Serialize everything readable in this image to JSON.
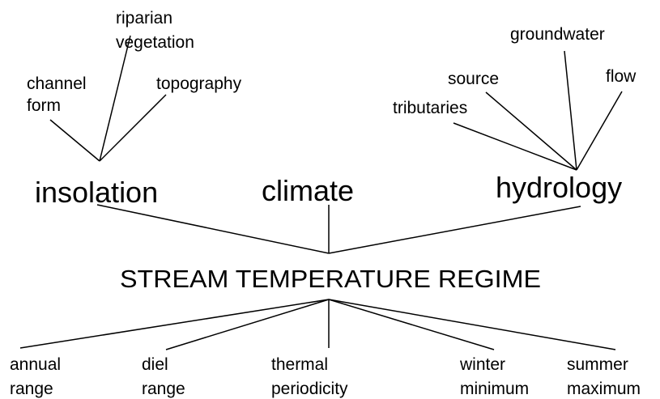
{
  "title": "STREAM TEMPERATURE REGIME",
  "drivers": [
    {
      "label": "insolation",
      "factors": [
        [
          "channel",
          "form"
        ],
        [
          "riparian",
          "vegetation"
        ],
        [
          "topography"
        ]
      ]
    },
    {
      "label": "climate",
      "factors": []
    },
    {
      "label": "hydrology",
      "factors": [
        [
          "tributaries"
        ],
        [
          "source"
        ],
        [
          "groundwater"
        ],
        [
          "flow"
        ]
      ]
    }
  ],
  "components": [
    [
      "annual",
      "range"
    ],
    [
      "diel",
      "range"
    ],
    [
      "thermal",
      "periodicity"
    ],
    [
      "winter",
      "minimum"
    ],
    [
      "summer",
      "maximum"
    ]
  ]
}
